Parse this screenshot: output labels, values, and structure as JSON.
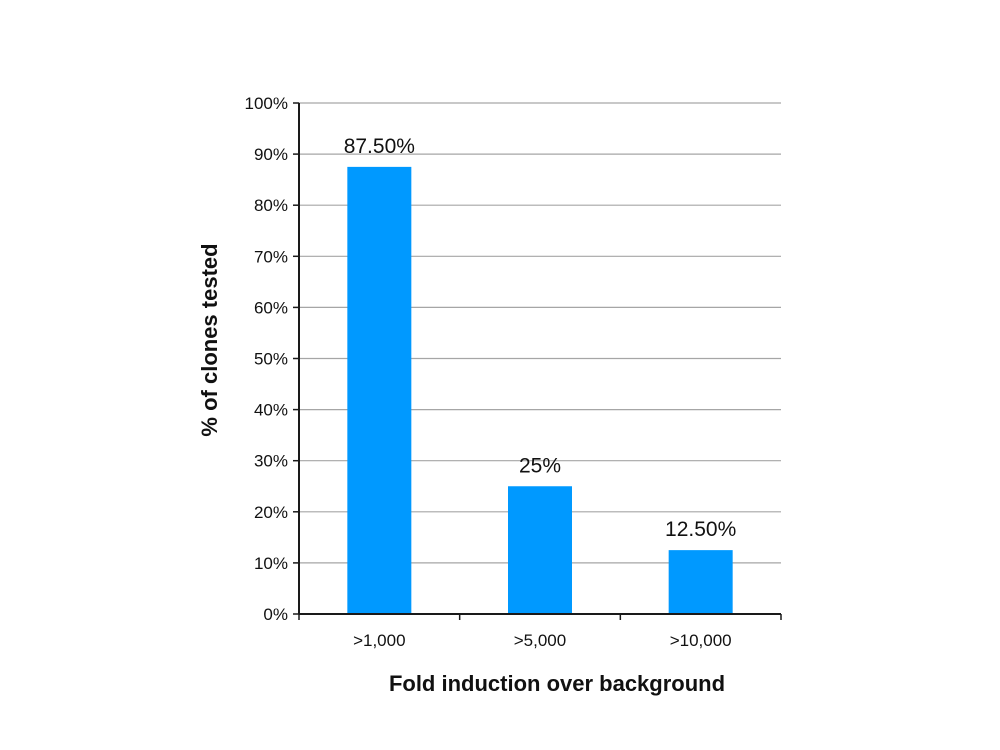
{
  "colors": {
    "bar": "#0099ff",
    "gridline": "#a6a6a6",
    "axis": "#1a1a1a",
    "text": "#111111"
  },
  "chart_data": {
    "type": "bar",
    "title": "",
    "xlabel": "Fold induction over background",
    "ylabel": "% of clones tested",
    "categories": [
      ">1,000",
      ">5,000",
      ">10,000"
    ],
    "values": [
      87.5,
      25,
      12.5
    ],
    "data_labels": [
      "87.50%",
      "25%",
      "12.50%"
    ],
    "ylim": [
      0,
      100
    ],
    "y_ticks": [
      0,
      10,
      20,
      30,
      40,
      50,
      60,
      70,
      80,
      90,
      100
    ],
    "y_tick_labels": [
      "0%",
      "10%",
      "20%",
      "30%",
      "40%",
      "50%",
      "60%",
      "70%",
      "80%",
      "90%",
      "100%"
    ],
    "grid": true,
    "legend": "none"
  }
}
